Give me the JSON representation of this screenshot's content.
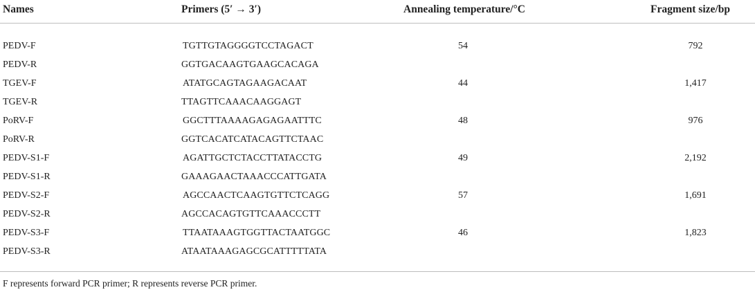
{
  "headers": {
    "names": "Names",
    "primers": "Primers (5′ → 3′)",
    "annealing": "Annealing temperature/°C",
    "fragment": "Fragment size/bp"
  },
  "rows": [
    {
      "name": "PEDV-F",
      "primer": "TGTTGTAGGGGTCCTAGACT",
      "temp": "54",
      "size": "792"
    },
    {
      "name": "PEDV-R",
      "primer": "GGTGACAAGTGAAGCACAGA",
      "temp": "",
      "size": ""
    },
    {
      "name": "TGEV-F",
      "primer": "ATATGCAGTAGAAGACAAT",
      "temp": "44",
      "size": "1,417"
    },
    {
      "name": "TGEV-R",
      "primer": "TTAGTTCAAACAAGGAGT",
      "temp": "",
      "size": ""
    },
    {
      "name": "PoRV-F",
      "primer": "GGCTTTAAAAGAGAGAATTTC",
      "temp": "48",
      "size": "976"
    },
    {
      "name": "PoRV-R",
      "primer": "GGTCACATCATACAGTTCTAAC",
      "temp": "",
      "size": ""
    },
    {
      "name": "PEDV-S1-F",
      "primer": "AGATTGCTCTACCTTATACCTG",
      "temp": "49",
      "size": "2,192"
    },
    {
      "name": "PEDV-S1-R",
      "primer": "GAAAGAACTAAACCCATTGATA",
      "temp": "",
      "size": ""
    },
    {
      "name": "PEDV-S2-F",
      "primer": "AGCCAACTCAAGTGTTCTCAGG",
      "temp": "57",
      "size": "1,691"
    },
    {
      "name": "PEDV-S2-R",
      "primer": "AGCCACAGTGTTCAAACCCTT",
      "temp": "",
      "size": ""
    },
    {
      "name": "PEDV-S3-F",
      "primer": "TTAATAAAGTGGTTACTAATGGC",
      "temp": "46",
      "size": "1,823"
    },
    {
      "name": "PEDV-S3-R",
      "primer": "ATAATAAAGAGCGCATTTTTATA",
      "temp": "",
      "size": ""
    }
  ],
  "footnote": "F represents forward PCR primer; R represents reverse PCR primer."
}
